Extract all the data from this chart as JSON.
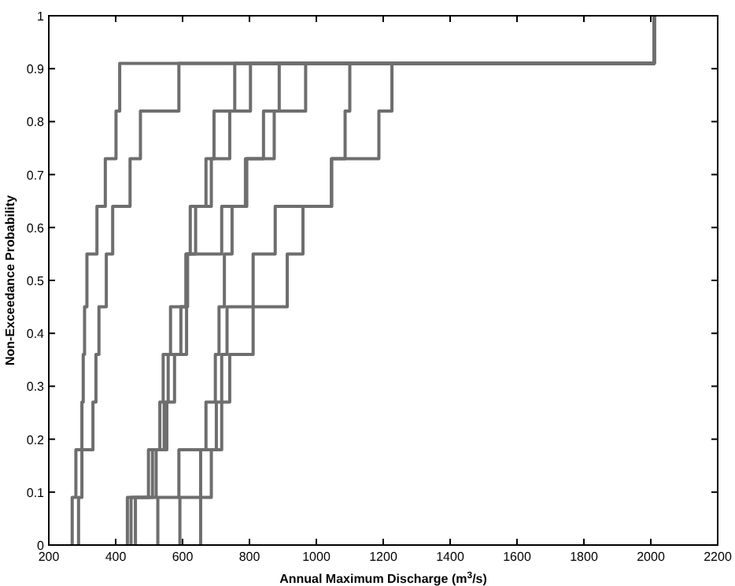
{
  "chart_data": {
    "type": "step",
    "xlabel": "Annual Maximum Discharge (m$^{3}$/s)",
    "ylabel": "Non-Exceedance Probability",
    "xlim": [
      200,
      2200
    ],
    "xticks": [
      200,
      400,
      600,
      800,
      1000,
      1200,
      1400,
      1600,
      1800,
      2000,
      2200
    ],
    "ylim": [
      0,
      1
    ],
    "yticks": [
      0,
      0.1,
      0.2,
      0.3,
      0.4,
      0.5,
      0.6,
      0.7,
      0.8,
      0.9,
      1
    ],
    "marker": "none",
    "line_style": "solid",
    "series": [
      {
        "color": "#6e6e6e",
        "x": [
          270,
          270,
          281,
          299,
          303,
          307,
          314,
          344,
          369,
          401,
          412,
          2010
        ],
        "values": [
          0,
          0.09,
          0.18,
          0.27,
          0.36,
          0.45,
          0.55,
          0.64,
          0.73,
          0.82,
          0.91,
          1
        ]
      },
      {
        "color": "#6e6e6e",
        "x": [
          289,
          289,
          299,
          332,
          341,
          350,
          372,
          391,
          443,
          474,
          589,
          2010
        ],
        "values": [
          0,
          0.09,
          0.18,
          0.27,
          0.36,
          0.45,
          0.55,
          0.64,
          0.73,
          0.82,
          0.91,
          1
        ]
      },
      {
        "color": "#6e6e6e",
        "x": [
          435,
          435,
          498,
          545,
          557,
          564,
          611,
          623,
          670,
          741,
          756,
          2010
        ],
        "values": [
          0,
          0.09,
          0.18,
          0.27,
          0.36,
          0.45,
          0.55,
          0.64,
          0.73,
          0.82,
          0.91,
          1
        ]
      },
      {
        "color": "#6e6e6e",
        "x": [
          446,
          446,
          510,
          553,
          576,
          612,
          615,
          639,
          686,
          694,
          803,
          2010
        ],
        "values": [
          0,
          0.09,
          0.18,
          0.27,
          0.36,
          0.45,
          0.55,
          0.64,
          0.73,
          0.82,
          0.91,
          1
        ]
      },
      {
        "color": "#6e6e6e",
        "x": [
          459,
          459,
          521,
          532,
          542,
          595,
          610,
          717,
          792,
          842,
          889,
          2010
        ],
        "values": [
          0,
          0.09,
          0.18,
          0.27,
          0.36,
          0.45,
          0.55,
          0.64,
          0.73,
          0.82,
          0.91,
          1
        ]
      },
      {
        "color": "#6e6e6e",
        "x": [
          526,
          526,
          589,
          670,
          698,
          709,
          725,
          748,
          788,
          874,
          968,
          2010
        ],
        "values": [
          0,
          0.09,
          0.18,
          0.27,
          0.36,
          0.45,
          0.55,
          0.64,
          0.73,
          0.82,
          0.91,
          1
        ]
      },
      {
        "color": "#6e6e6e",
        "x": [
          592,
          592,
          654,
          701,
          717,
          733,
          811,
          877,
          1046,
          1187,
          1226,
          2010
        ],
        "values": [
          0,
          0.09,
          0.18,
          0.27,
          0.36,
          0.45,
          0.55,
          0.64,
          0.73,
          0.82,
          0.91,
          1
        ]
      },
      {
        "color": "#6e6e6e",
        "x": [
          654,
          654,
          686,
          717,
          741,
          811,
          913,
          960,
          1045,
          1086,
          1100,
          2010
        ],
        "values": [
          0,
          0.09,
          0.18,
          0.27,
          0.36,
          0.45,
          0.55,
          0.64,
          0.73,
          0.82,
          0.91,
          1
        ]
      }
    ]
  }
}
